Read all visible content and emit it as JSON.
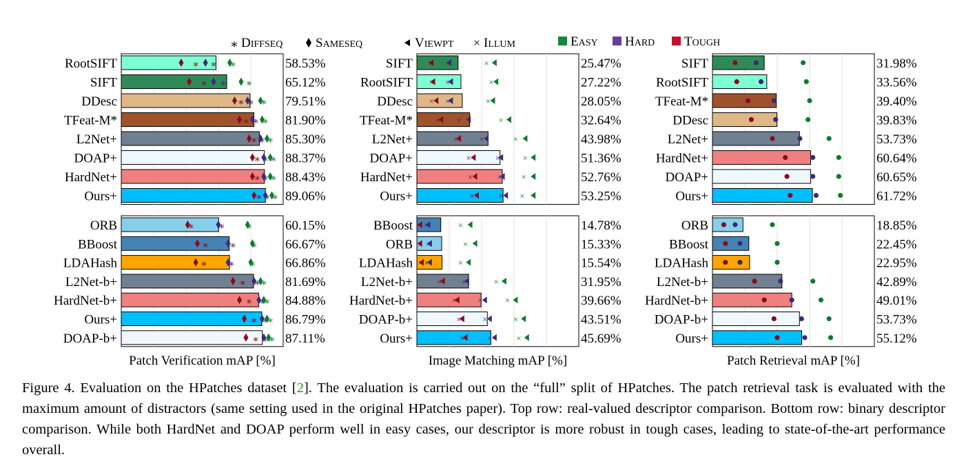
{
  "legend": {
    "markers": [
      {
        "key": "diffseq",
        "symbol": "∗",
        "label": "DiffSeq"
      },
      {
        "key": "sameseq",
        "symbol": "♦",
        "label": "SameSeq"
      },
      {
        "key": "viewpt",
        "symbol": "◂",
        "label": "Viewpt"
      },
      {
        "key": "illum",
        "symbol": "×",
        "label": "Illum"
      }
    ],
    "levels": [
      {
        "key": "easy",
        "label": "Easy",
        "color": "#0f8a3c"
      },
      {
        "key": "hard",
        "label": "Hard",
        "color": "#6a3d9a"
      },
      {
        "key": "tough",
        "label": "Tough",
        "color": "#c8102e"
      }
    ]
  },
  "marker_colors": {
    "easy": "#0f7a30",
    "hard": "#3b2a78",
    "tough": "#8b0a1e"
  },
  "chart_data": [
    {
      "id": "verification-real",
      "type": "bar",
      "xlim": [
        0,
        100
      ],
      "grid": true,
      "markers": [
        "diffseq",
        "sameseq"
      ],
      "categories": [
        "RootSIFT",
        "SIFT",
        "DDesc",
        "TFeat-M*",
        "L2Net+",
        "DOAP+",
        "HardNet+",
        "Ours+"
      ],
      "values": [
        58.53,
        65.12,
        79.51,
        81.9,
        85.3,
        88.37,
        88.43,
        89.06
      ],
      "value_labels": [
        "58.53%",
        "65.12%",
        "79.51%",
        "81.90%",
        "85.30%",
        "88.37%",
        "88.43%",
        "89.06%"
      ],
      "colors": [
        "#7fffd4",
        "#2e8b57",
        "#deb887",
        "#a0522d",
        "#708090",
        "#f0f8ff",
        "#f08080",
        "#00bfff"
      ],
      "points": {
        "diffseq": {
          "easy": [
            69,
            79,
            88,
            89,
            92,
            94,
            94,
            95
          ],
          "hard": [
            57,
            63,
            80,
            83,
            87,
            89,
            89,
            90
          ],
          "tough": [
            46,
            51,
            74,
            77,
            82,
            84,
            84,
            85
          ]
        },
        "sameseq": {
          "easy": [
            67,
            74,
            86,
            87,
            90,
            92,
            92,
            93
          ],
          "hard": [
            52,
            57,
            78,
            81,
            86,
            88,
            88,
            89
          ],
          "tough": [
            37,
            42,
            70,
            73,
            79,
            81,
            81,
            82
          ]
        }
      }
    },
    {
      "id": "matching-real",
      "type": "bar",
      "xlim": [
        0,
        100
      ],
      "grid": true,
      "markers": [
        "viewpt",
        "illum"
      ],
      "categories": [
        "SIFT",
        "RootSIFT",
        "DDesc",
        "TFeat-M*",
        "L2Net+",
        "DOAP+",
        "HardNet+",
        "Ours+"
      ],
      "values": [
        25.47,
        27.22,
        28.05,
        32.64,
        43.98,
        51.36,
        52.76,
        53.25
      ],
      "value_labels": [
        "25.47%",
        "27.22%",
        "28.05%",
        "32.64%",
        "43.98%",
        "51.36%",
        "52.76%",
        "53.25%"
      ],
      "colors": [
        "#2e8b57",
        "#7fffd4",
        "#deb887",
        "#a0522d",
        "#708090",
        "#f0f8ff",
        "#f08080",
        "#00bfff"
      ],
      "points": {
        "viewpt": {
          "easy": [
            48,
            49,
            47,
            57,
            67,
            72,
            72,
            72
          ],
          "hard": [
            20,
            21,
            21,
            32,
            43,
            52,
            53,
            55
          ],
          "tough": [
            9,
            10,
            12,
            15,
            26,
            35,
            36,
            37
          ]
        },
        "illum": {
          "easy": [
            43,
            46,
            44,
            52,
            61,
            67,
            66,
            65
          ],
          "hard": [
            19,
            19,
            19,
            26,
            40,
            50,
            51,
            52
          ],
          "tough": [
            8,
            9,
            9,
            13,
            24,
            32,
            33,
            34
          ]
        }
      }
    },
    {
      "id": "retrieval-real",
      "type": "bar",
      "xlim": [
        0,
        100
      ],
      "grid": true,
      "markers": [
        "dot"
      ],
      "categories": [
        "SIFT",
        "RootSIFT",
        "TFeat-M*",
        "DDesc",
        "L2Net+",
        "HardNet+",
        "DOAP+",
        "Ours+"
      ],
      "values": [
        31.98,
        33.56,
        39.4,
        39.83,
        53.73,
        60.64,
        60.65,
        61.72
      ],
      "value_labels": [
        "31.98%",
        "33.56%",
        "39.40%",
        "39.83%",
        "53.73%",
        "60.64%",
        "60.65%",
        "61.72%"
      ],
      "colors": [
        "#2e8b57",
        "#7fffd4",
        "#a0522d",
        "#deb887",
        "#708090",
        "#f08080",
        "#f0f8ff",
        "#00bfff"
      ],
      "points": {
        "dot": {
          "easy": [
            56,
            58,
            60,
            59,
            72,
            78,
            78,
            79
          ],
          "hard": [
            27,
            30,
            38,
            39,
            54,
            62,
            62,
            64
          ],
          "tough": [
            14,
            15,
            22,
            24,
            37,
            45,
            46,
            48
          ]
        }
      }
    },
    {
      "id": "verification-binary",
      "type": "bar",
      "xlim": [
        0,
        100
      ],
      "grid": true,
      "markers": [
        "diffseq",
        "sameseq"
      ],
      "categories": [
        "ORB",
        "BBoost",
        "LDAHash",
        "L2Net-b+",
        "HardNet-b+",
        "Ours+",
        "DOAP-b+"
      ],
      "values": [
        60.15,
        66.67,
        66.86,
        81.69,
        84.88,
        86.79,
        87.11
      ],
      "value_labels": [
        "60.15%",
        "66.67%",
        "66.86%",
        "81.69%",
        "84.88%",
        "86.79%",
        "87.11%"
      ],
      "colors": [
        "#87ceeb",
        "#4682b4",
        "#ffa500",
        "#708090",
        "#f08080",
        "#00bfff",
        "#f0f8ff"
      ],
      "points": {
        "diffseq": {
          "easy": [
            79,
            82,
            81,
            88,
            90,
            92,
            93
          ],
          "hard": [
            62,
            69,
            68,
            84,
            87,
            89,
            89
          ],
          "tough": [
            43,
            52,
            51,
            75,
            79,
            82,
            83
          ]
        },
        "sameseq": {
          "easy": [
            78,
            81,
            80,
            86,
            88,
            90,
            91
          ],
          "hard": [
            60,
            66,
            66,
            82,
            85,
            87,
            88
          ],
          "tough": [
            41,
            47,
            46,
            69,
            73,
            76,
            77
          ]
        }
      }
    },
    {
      "id": "matching-binary",
      "type": "bar",
      "xlim": [
        0,
        100
      ],
      "grid": true,
      "markers": [
        "viewpt",
        "illum"
      ],
      "categories": [
        "BBoost",
        "ORB",
        "LDAHash",
        "L2Net-b+",
        "HardNet-b+",
        "DOAP-b+",
        "Ours+"
      ],
      "values": [
        14.78,
        15.33,
        15.54,
        31.95,
        39.66,
        43.51,
        45.69
      ],
      "value_labels": [
        "14.78%",
        "15.33%",
        "15.54%",
        "31.95%",
        "39.66%",
        "43.51%",
        "45.69%"
      ],
      "colors": [
        "#4682b4",
        "#87ceeb",
        "#ffa500",
        "#708090",
        "#f08080",
        "#f0f8ff",
        "#00bfff"
      ],
      "points": {
        "viewpt": {
          "easy": [
            33,
            36,
            32,
            54,
            61,
            66,
            68
          ],
          "hard": [
            7,
            8,
            8,
            31,
            42,
            45,
            48
          ],
          "tough": [
            2,
            2,
            3,
            16,
            25,
            28,
            30
          ]
        },
        "illum": {
          "easy": [
            27,
            30,
            27,
            49,
            56,
            61,
            63
          ],
          "hard": [
            6,
            7,
            6,
            29,
            39,
            42,
            45
          ],
          "tough": [
            2,
            2,
            2,
            14,
            23,
            26,
            28
          ]
        }
      }
    },
    {
      "id": "retrieval-binary",
      "type": "bar",
      "xlim": [
        0,
        100
      ],
      "grid": true,
      "markers": [
        "dot"
      ],
      "categories": [
        "ORB",
        "BBoost",
        "LDAHash",
        "L2Net-b+",
        "HardNet-b+",
        "DOAP-b+",
        "Ours+"
      ],
      "values": [
        18.85,
        22.45,
        22.95,
        42.89,
        49.01,
        53.73,
        55.12
      ],
      "value_labels": [
        "18.85%",
        "22.45%",
        "22.95%",
        "42.89%",
        "49.01%",
        "53.73%",
        "55.12%"
      ],
      "colors": [
        "#87ceeb",
        "#4682b4",
        "#ffa500",
        "#708090",
        "#f08080",
        "#f0f8ff",
        "#00bfff"
      ],
      "points": {
        "dot": {
          "easy": [
            37,
            40,
            40,
            62,
            67,
            72,
            73
          ],
          "hard": [
            14,
            17,
            17,
            42,
            49,
            55,
            57
          ],
          "tough": [
            7,
            8,
            8,
            26,
            32,
            38,
            40
          ]
        }
      }
    }
  ],
  "xlabels": [
    "Patch Verification mAP [%]",
    "Image Matching mAP [%]",
    "Patch Retrieval mAP [%]"
  ],
  "caption": {
    "figure_label": "Figure 4.",
    "text_before_ref": " Evaluation on the HPatches dataset [",
    "ref": "2",
    "text_after_ref": "]. The evaluation is carried out on the “full” split of HPatches. The patch retrieval task is evaluated with the maximum amount of distractors (same setting used in the original HPatches paper). Top row: real-valued descriptor comparison. Bottom row: binary descriptor comparison. While both HardNet and DOAP perform well in easy cases, our descriptor is more robust in tough cases, leading to state-of-the-art performance overall."
  }
}
